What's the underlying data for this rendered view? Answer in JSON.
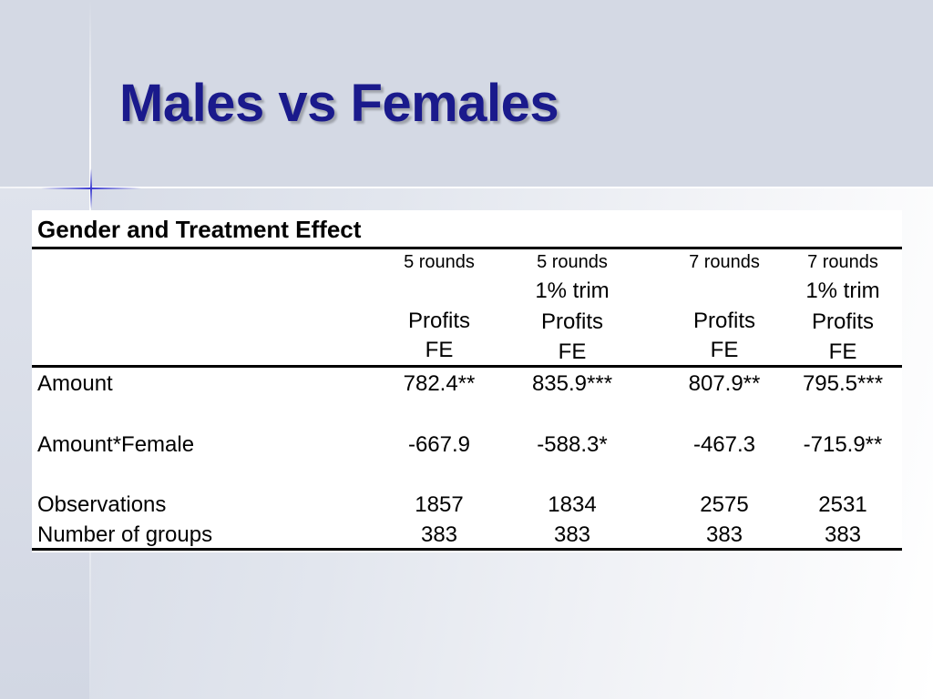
{
  "slide": {
    "title": "Males vs Females"
  },
  "table": {
    "caption": "Gender and Treatment Effect",
    "columns": [
      {
        "rounds": "5 rounds",
        "trim": "",
        "dep": "Profits",
        "model": "FE"
      },
      {
        "rounds": "5 rounds",
        "trim": "1% trim",
        "dep": "Profits",
        "model": "FE"
      },
      {
        "rounds": "7 rounds",
        "trim": "",
        "dep": "Profits",
        "model": "FE"
      },
      {
        "rounds": "7 rounds",
        "trim": "1% trim",
        "dep": "Profits",
        "model": "FE"
      }
    ],
    "rows": [
      {
        "label": "Amount",
        "values": [
          "782.4**",
          "835.9***",
          "807.9**",
          "795.5***"
        ]
      },
      {
        "label": "Amount*Female",
        "values": [
          "-667.9",
          "-588.3*",
          "-467.3",
          "-715.9**"
        ]
      },
      {
        "label": "Observations",
        "values": [
          "1857",
          "1834",
          "2575",
          "2531"
        ]
      },
      {
        "label": "Number of groups",
        "values": [
          "383",
          "383",
          "383",
          "383"
        ]
      }
    ]
  },
  "colors": {
    "title": "#1a1a8c",
    "title_band": "#d4d9e4",
    "decor_star": "#3a3ad0"
  }
}
